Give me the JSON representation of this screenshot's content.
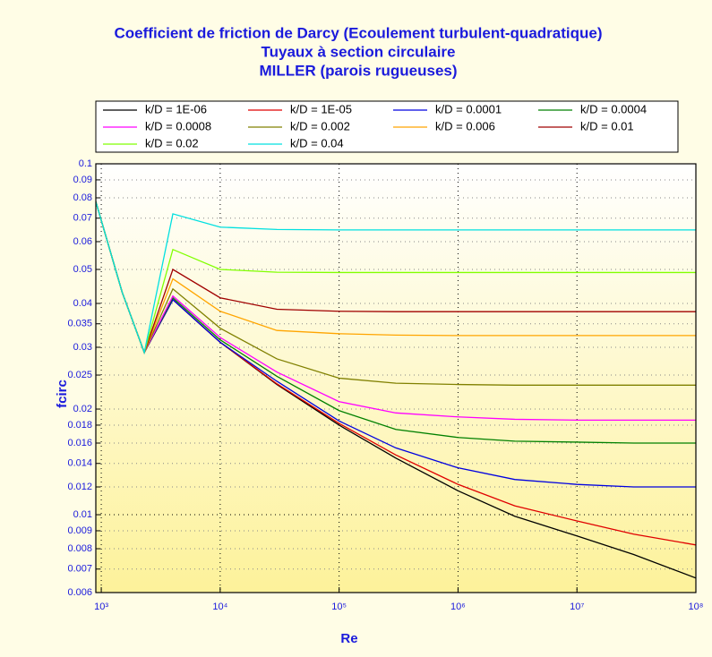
{
  "chart_data": {
    "type": "line",
    "title": [
      "Coefficient de friction de Darcy (Ecoulement turbulent-quadratique)",
      "Tuyaux à section circulaire",
      "MILLER (parois rugueuses)"
    ],
    "x_label": "Re",
    "y_label": "fcirc",
    "log_x": true,
    "log_y": true,
    "grid": true,
    "legend": "top",
    "xlim": [
      900,
      100000000
    ],
    "ylim": [
      0.006,
      0.1
    ],
    "xticks": [
      {
        "value": 1000,
        "label": "10³"
      },
      {
        "value": 10000,
        "label": "10⁴"
      },
      {
        "value": 100000,
        "label": "10⁵"
      },
      {
        "value": 1000000,
        "label": "10⁶"
      },
      {
        "value": 10000000,
        "label": "10⁷"
      },
      {
        "value": 100000000,
        "label": "10⁸"
      }
    ],
    "yticks": [
      0.006,
      0.007,
      0.008,
      0.009,
      0.01,
      0.012,
      0.014,
      0.016,
      0.018,
      0.02,
      0.025,
      0.03,
      0.035,
      0.04,
      0.05,
      0.06,
      0.07,
      0.08,
      0.09,
      0.1
    ],
    "x": [
      900,
      1500,
      2300,
      4000,
      10000,
      30000,
      100000,
      300000,
      1000000,
      3000000,
      10000000,
      30000000,
      100000000
    ],
    "series": [
      {
        "name": "k/D = 1E-06",
        "color": "#000000",
        "values": [
          0.078,
          0.043,
          0.029,
          0.041,
          0.031,
          0.0235,
          0.018,
          0.0145,
          0.0117,
          0.0099,
          0.0087,
          0.0077,
          0.0066
        ]
      },
      {
        "name": "k/D = 1E-05",
        "color": "#e00000",
        "values": [
          0.078,
          0.043,
          0.029,
          0.041,
          0.031,
          0.0236,
          0.0182,
          0.0148,
          0.0122,
          0.0106,
          0.0096,
          0.0088,
          0.0082
        ]
      },
      {
        "name": "k/D = 0.0001",
        "color": "#0000e0",
        "values": [
          0.078,
          0.043,
          0.029,
          0.041,
          0.031,
          0.024,
          0.0185,
          0.0155,
          0.0136,
          0.0126,
          0.0122,
          0.012,
          0.012
        ]
      },
      {
        "name": "k/D = 0.0004",
        "color": "#008000",
        "values": [
          0.078,
          0.043,
          0.029,
          0.0415,
          0.0315,
          0.0248,
          0.0198,
          0.0175,
          0.0166,
          0.0162,
          0.0161,
          0.016,
          0.016
        ]
      },
      {
        "name": "k/D = 0.0008",
        "color": "#ff00ff",
        "values": [
          0.078,
          0.043,
          0.029,
          0.042,
          0.032,
          0.0255,
          0.021,
          0.0195,
          0.019,
          0.0187,
          0.0186,
          0.0186,
          0.0186
        ]
      },
      {
        "name": "k/D = 0.002",
        "color": "#808000",
        "values": [
          0.078,
          0.043,
          0.029,
          0.044,
          0.034,
          0.0278,
          0.0245,
          0.0237,
          0.0235,
          0.0234,
          0.0234,
          0.0234,
          0.0234
        ]
      },
      {
        "name": "k/D = 0.006",
        "color": "#ffa500",
        "values": [
          0.078,
          0.043,
          0.029,
          0.047,
          0.038,
          0.0335,
          0.0328,
          0.0325,
          0.0324,
          0.0324,
          0.0324,
          0.0324,
          0.0324
        ]
      },
      {
        "name": "k/D = 0.01",
        "color": "#a00000",
        "values": [
          0.078,
          0.043,
          0.029,
          0.05,
          0.0415,
          0.0385,
          0.038,
          0.0379,
          0.0379,
          0.0379,
          0.0379,
          0.0379,
          0.0379
        ]
      },
      {
        "name": "k/D = 0.02",
        "color": "#80ff00",
        "values": [
          0.078,
          0.043,
          0.029,
          0.057,
          0.05,
          0.0491,
          0.049,
          0.049,
          0.049,
          0.049,
          0.049,
          0.049,
          0.049
        ]
      },
      {
        "name": "k/D = 0.04",
        "color": "#00e0e0",
        "values": [
          0.078,
          0.043,
          0.029,
          0.072,
          0.066,
          0.065,
          0.0648,
          0.0648,
          0.0648,
          0.0648,
          0.0648,
          0.0648,
          0.0648
        ]
      }
    ]
  }
}
